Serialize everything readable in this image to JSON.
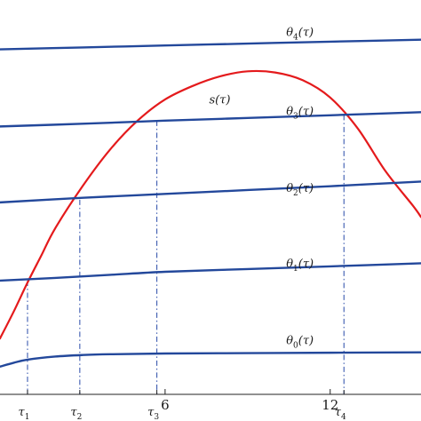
{
  "chart_data": {
    "type": "line",
    "x_ticks": [
      {
        "value": 6,
        "label": "6"
      },
      {
        "value": 12,
        "label": "12"
      }
    ],
    "xlim": [
      0,
      15.3
    ],
    "ylim": [
      0,
      10
    ],
    "grid": false,
    "series": [
      {
        "name": "s",
        "label_base": "s",
        "label_sub": "",
        "label_arg": "(τ)",
        "color": "#e41a1c",
        "label_at": [
          7.6,
          7.55
        ],
        "x": [
          0,
          0.5,
          1,
          1.5,
          2,
          3,
          4,
          5,
          6,
          7,
          8,
          9,
          10,
          11,
          12,
          13,
          14,
          15,
          15.3
        ],
        "y": [
          1.45,
          2.15,
          2.9,
          3.6,
          4.3,
          5.4,
          6.35,
          7.1,
          7.65,
          8.0,
          8.25,
          8.38,
          8.35,
          8.15,
          7.7,
          6.9,
          5.8,
          4.9,
          4.6
        ]
      },
      {
        "name": "θ4",
        "label_base": "θ",
        "label_sub": "4",
        "label_arg": "(τ)",
        "color": "#23489b",
        "label_at": [
          10.4,
          9.3
        ],
        "x": [
          0,
          3,
          6,
          9,
          12,
          15.3
        ],
        "y": [
          8.95,
          9.0,
          9.05,
          9.1,
          9.15,
          9.2
        ]
      },
      {
        "name": "θ3",
        "label_base": "θ",
        "label_sub": "3",
        "label_arg": "(τ)",
        "color": "#23489b",
        "label_at": [
          10.4,
          7.25
        ],
        "x": [
          0,
          3,
          6,
          9,
          12,
          15.3
        ],
        "y": [
          6.95,
          7.02,
          7.1,
          7.17,
          7.24,
          7.32
        ]
      },
      {
        "name": "θ2",
        "label_base": "θ",
        "label_sub": "2",
        "label_arg": "(τ)",
        "color": "#23489b",
        "label_at": [
          10.4,
          5.25
        ],
        "x": [
          0,
          3,
          6,
          9,
          12,
          15.3
        ],
        "y": [
          4.98,
          5.1,
          5.2,
          5.3,
          5.4,
          5.52
        ]
      },
      {
        "name": "θ1",
        "label_base": "θ",
        "label_sub": "1",
        "label_arg": "(τ)",
        "color": "#23489b",
        "label_at": [
          10.4,
          3.3
        ],
        "x": [
          0,
          2,
          4,
          6,
          9,
          12,
          15.3
        ],
        "y": [
          2.95,
          3.02,
          3.1,
          3.18,
          3.25,
          3.32,
          3.4
        ]
      },
      {
        "name": "θ0",
        "label_base": "θ",
        "label_sub": "0",
        "label_arg": "(τ)",
        "color": "#23489b",
        "label_at": [
          10.4,
          1.3
        ],
        "x": [
          0,
          0.5,
          1,
          2,
          3,
          4,
          6,
          9,
          12,
          15.3
        ],
        "y": [
          0.72,
          0.82,
          0.9,
          0.98,
          1.02,
          1.04,
          1.06,
          1.07,
          1.08,
          1.09
        ]
      }
    ],
    "intersections": [
      {
        "label_base": "τ",
        "label_sub": "1",
        "x": 1.0,
        "y": 2.95
      },
      {
        "label_base": "τ",
        "label_sub": "2",
        "x": 2.9,
        "y": 5.05
      },
      {
        "label_base": "τ",
        "label_sub": "3",
        "x": 5.7,
        "y": 7.1
      },
      {
        "label_base": "τ",
        "label_sub": "4",
        "x": 12.5,
        "y": 7.25
      }
    ]
  }
}
